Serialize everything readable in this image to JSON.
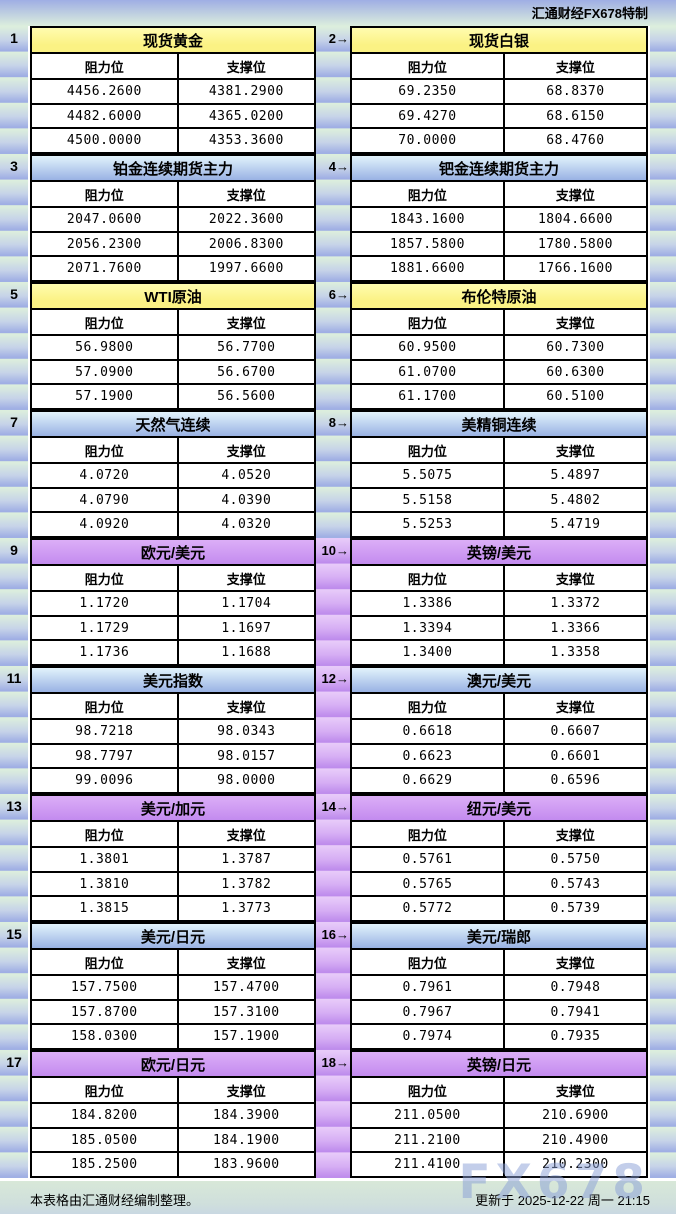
{
  "header": {
    "brand": "汇通财经FX678特制"
  },
  "columns": {
    "resistance": "阻力位",
    "support": "支撑位"
  },
  "arrow": "→",
  "panels": [
    {
      "num": "1",
      "title": "现货黄金",
      "theme": "yellow",
      "rows": [
        [
          "4456.2600",
          "4381.2900"
        ],
        [
          "4482.6000",
          "4365.0200"
        ],
        [
          "4500.0000",
          "4353.3600"
        ]
      ]
    },
    {
      "num": "2",
      "title": "现货白银",
      "theme": "yellow",
      "rows": [
        [
          "69.2350",
          "68.8370"
        ],
        [
          "69.4270",
          "68.6150"
        ],
        [
          "70.0000",
          "68.4760"
        ]
      ]
    },
    {
      "num": "3",
      "title": "铂金连续期货主力",
      "theme": "blue",
      "rows": [
        [
          "2047.0600",
          "2022.3600"
        ],
        [
          "2056.2300",
          "2006.8300"
        ],
        [
          "2071.7600",
          "1997.6600"
        ]
      ]
    },
    {
      "num": "4",
      "title": "钯金连续期货主力",
      "theme": "blue",
      "rows": [
        [
          "1843.1600",
          "1804.6600"
        ],
        [
          "1857.5800",
          "1780.5800"
        ],
        [
          "1881.6600",
          "1766.1600"
        ]
      ]
    },
    {
      "num": "5",
      "title": "WTI原油",
      "theme": "yellow",
      "rows": [
        [
          "56.9800",
          "56.7700"
        ],
        [
          "57.0900",
          "56.6700"
        ],
        [
          "57.1900",
          "56.5600"
        ]
      ]
    },
    {
      "num": "6",
      "title": "布伦特原油",
      "theme": "yellow",
      "rows": [
        [
          "60.9500",
          "60.7300"
        ],
        [
          "61.0700",
          "60.6300"
        ],
        [
          "61.1700",
          "60.5100"
        ]
      ]
    },
    {
      "num": "7",
      "title": "天然气连续",
      "theme": "blue",
      "rows": [
        [
          "4.0720",
          "4.0520"
        ],
        [
          "4.0790",
          "4.0390"
        ],
        [
          "4.0920",
          "4.0320"
        ]
      ]
    },
    {
      "num": "8",
      "title": "美精铜连续",
      "theme": "blue",
      "rows": [
        [
          "5.5075",
          "5.4897"
        ],
        [
          "5.5158",
          "5.4802"
        ],
        [
          "5.5253",
          "5.4719"
        ]
      ]
    },
    {
      "num": "9",
      "title": "欧元/美元",
      "theme": "purple",
      "rows": [
        [
          "1.1720",
          "1.1704"
        ],
        [
          "1.1729",
          "1.1697"
        ],
        [
          "1.1736",
          "1.1688"
        ]
      ]
    },
    {
      "num": "10",
      "title": "英镑/美元",
      "theme": "purple",
      "rows": [
        [
          "1.3386",
          "1.3372"
        ],
        [
          "1.3394",
          "1.3366"
        ],
        [
          "1.3400",
          "1.3358"
        ]
      ]
    },
    {
      "num": "11",
      "title": "美元指数",
      "theme": "blue",
      "rows": [
        [
          "98.7218",
          "98.0343"
        ],
        [
          "98.7797",
          "98.0157"
        ],
        [
          "99.0096",
          "98.0000"
        ]
      ]
    },
    {
      "num": "12",
      "title": "澳元/美元",
      "theme": "blue",
      "rows": [
        [
          "0.6618",
          "0.6607"
        ],
        [
          "0.6623",
          "0.6601"
        ],
        [
          "0.6629",
          "0.6596"
        ]
      ]
    },
    {
      "num": "13",
      "title": "美元/加元",
      "theme": "purple",
      "rows": [
        [
          "1.3801",
          "1.3787"
        ],
        [
          "1.3810",
          "1.3782"
        ],
        [
          "1.3815",
          "1.3773"
        ]
      ]
    },
    {
      "num": "14",
      "title": "纽元/美元",
      "theme": "purple",
      "rows": [
        [
          "0.5761",
          "0.5750"
        ],
        [
          "0.5765",
          "0.5743"
        ],
        [
          "0.5772",
          "0.5739"
        ]
      ]
    },
    {
      "num": "15",
      "title": "美元/日元",
      "theme": "blue",
      "rows": [
        [
          "157.7500",
          "157.4700"
        ],
        [
          "157.8700",
          "157.3100"
        ],
        [
          "158.0300",
          "157.1900"
        ]
      ]
    },
    {
      "num": "16",
      "title": "美元/瑞郎",
      "theme": "blue",
      "rows": [
        [
          "0.7961",
          "0.7948"
        ],
        [
          "0.7967",
          "0.7941"
        ],
        [
          "0.7974",
          "0.7935"
        ]
      ]
    },
    {
      "num": "17",
      "title": "欧元/日元",
      "theme": "purple",
      "rows": [
        [
          "184.8200",
          "184.3900"
        ],
        [
          "185.0500",
          "184.1900"
        ],
        [
          "185.2500",
          "183.9600"
        ]
      ]
    },
    {
      "num": "18",
      "title": "英镑/日元",
      "theme": "purple",
      "rows": [
        [
          "211.0500",
          "210.6900"
        ],
        [
          "211.2100",
          "210.4900"
        ],
        [
          "211.4100",
          "210.2300"
        ]
      ]
    }
  ],
  "gutter_theme_by_section": [
    "green",
    "green",
    "green",
    "green",
    "purple",
    "purple",
    "purple",
    "purple",
    "purple"
  ],
  "footer": {
    "note": "本表格由汇通财经编制整理。",
    "updated": "更新于 2025-12-22 周一 21:15"
  },
  "watermark": "FX678",
  "colors": {
    "title_yellow": "#fbf284",
    "title_blue_top": "#e2f3fc",
    "title_blue_bottom": "#99b2e4",
    "title_purple_top": "#dcaef7",
    "title_purple_bottom": "#c38bef",
    "margin_top": "#dceedd",
    "margin_bottom": "#9faee4",
    "gutter_purple_top": "#e7caf9",
    "gutter_purple_bottom": "#be8cec"
  },
  "chart_data": {
    "type": "table",
    "title": "汇通财经FX678特制 支撑阻力位一览",
    "columns": [
      "阻力位",
      "支撑位"
    ],
    "instruments": [
      {
        "name": "现货黄金",
        "resistance": [
          4456.26,
          4482.6,
          4500.0
        ],
        "support": [
          4381.29,
          4365.02,
          4353.36
        ]
      },
      {
        "name": "现货白银",
        "resistance": [
          69.235,
          69.427,
          70.0
        ],
        "support": [
          68.837,
          68.615,
          68.476
        ]
      },
      {
        "name": "铂金连续期货主力",
        "resistance": [
          2047.06,
          2056.23,
          2071.76
        ],
        "support": [
          2022.36,
          2006.83,
          1997.66
        ]
      },
      {
        "name": "钯金连续期货主力",
        "resistance": [
          1843.16,
          1857.58,
          1881.66
        ],
        "support": [
          1804.66,
          1780.58,
          1766.16
        ]
      },
      {
        "name": "WTI原油",
        "resistance": [
          56.98,
          57.09,
          57.19
        ],
        "support": [
          56.77,
          56.67,
          56.56
        ]
      },
      {
        "name": "布伦特原油",
        "resistance": [
          60.95,
          61.07,
          61.17
        ],
        "support": [
          60.73,
          60.63,
          60.51
        ]
      },
      {
        "name": "天然气连续",
        "resistance": [
          4.072,
          4.079,
          4.092
        ],
        "support": [
          4.052,
          4.039,
          4.032
        ]
      },
      {
        "name": "美精铜连续",
        "resistance": [
          5.5075,
          5.5158,
          5.5253
        ],
        "support": [
          5.4897,
          5.4802,
          5.4719
        ]
      },
      {
        "name": "欧元/美元",
        "resistance": [
          1.172,
          1.1729,
          1.1736
        ],
        "support": [
          1.1704,
          1.1697,
          1.1688
        ]
      },
      {
        "name": "英镑/美元",
        "resistance": [
          1.3386,
          1.3394,
          1.34
        ],
        "support": [
          1.3372,
          1.3366,
          1.3358
        ]
      },
      {
        "name": "美元指数",
        "resistance": [
          98.7218,
          98.7797,
          99.0096
        ],
        "support": [
          98.0343,
          98.0157,
          98.0
        ]
      },
      {
        "name": "澳元/美元",
        "resistance": [
          0.6618,
          0.6623,
          0.6629
        ],
        "support": [
          0.6607,
          0.6601,
          0.6596
        ]
      },
      {
        "name": "美元/加元",
        "resistance": [
          1.3801,
          1.381,
          1.3815
        ],
        "support": [
          1.3787,
          1.3782,
          1.3773
        ]
      },
      {
        "name": "纽元/美元",
        "resistance": [
          0.5761,
          0.5765,
          0.5772
        ],
        "support": [
          0.575,
          0.5743,
          0.5739
        ]
      },
      {
        "name": "美元/日元",
        "resistance": [
          157.75,
          157.87,
          158.03
        ],
        "support": [
          157.47,
          157.31,
          157.19
        ]
      },
      {
        "name": "美元/瑞郎",
        "resistance": [
          0.7961,
          0.7967,
          0.7974
        ],
        "support": [
          0.7948,
          0.7941,
          0.7935
        ]
      },
      {
        "name": "欧元/日元",
        "resistance": [
          184.82,
          185.05,
          185.25
        ],
        "support": [
          184.39,
          184.19,
          183.96
        ]
      },
      {
        "name": "英镑/日元",
        "resistance": [
          211.05,
          211.21,
          211.41
        ],
        "support": [
          210.69,
          210.49,
          210.23
        ]
      }
    ]
  }
}
